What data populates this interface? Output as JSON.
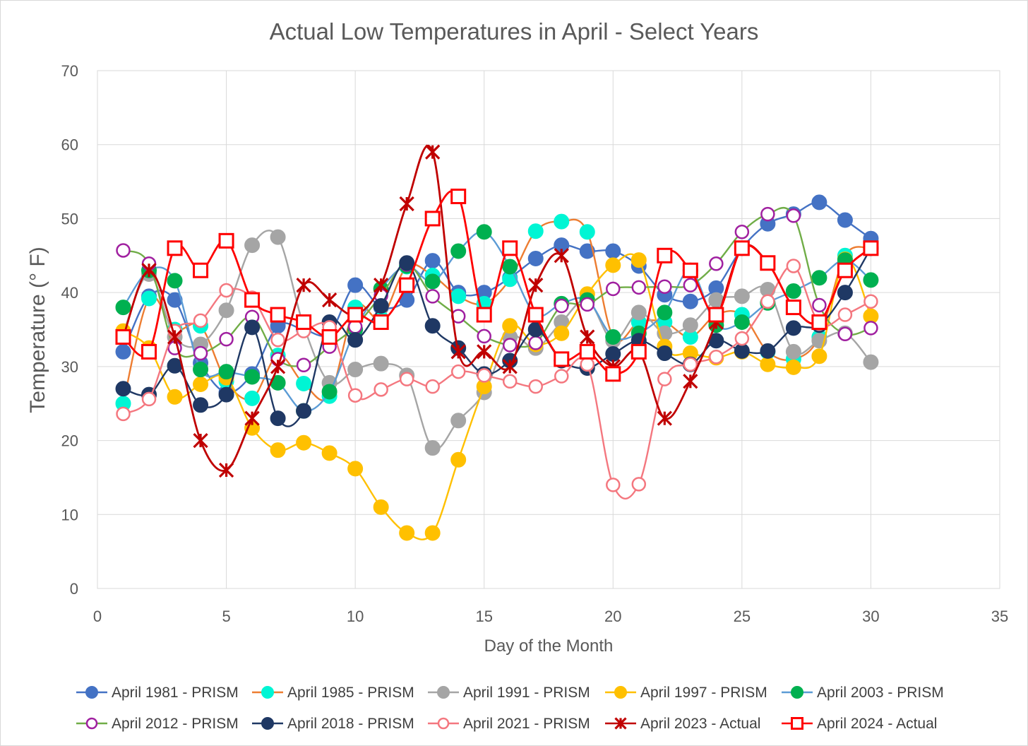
{
  "chart_data": {
    "type": "line",
    "title": "Actual Low Temperatures in April - Select Years",
    "xlabel": "Day of the Month",
    "ylabel": "Temperature (° F)",
    "xlim": [
      0,
      35
    ],
    "ylim": [
      0,
      70
    ],
    "x_ticks": [
      0,
      5,
      10,
      15,
      20,
      25,
      30,
      35
    ],
    "y_ticks": [
      0,
      10,
      20,
      30,
      40,
      50,
      60,
      70
    ],
    "grid": true,
    "legend_position": "bottom",
    "x": [
      1,
      2,
      3,
      4,
      5,
      6,
      7,
      8,
      9,
      10,
      11,
      12,
      13,
      14,
      15,
      16,
      17,
      18,
      19,
      20,
      21,
      22,
      23,
      24,
      25,
      26,
      27,
      28,
      29,
      30
    ],
    "series": [
      {
        "name": "April 1981 - PRISM",
        "line_color": "#4472c4",
        "marker": "circle",
        "marker_fill": "#4472c4",
        "marker_stroke": "#4472c4",
        "values": [
          32,
          39.5,
          39,
          30.5,
          26.5,
          29,
          35.5,
          35,
          34.5,
          41,
          38,
          39,
          44.3,
          40,
          40,
          42,
          44.6,
          46.4,
          45.6,
          45.6,
          43.6,
          39.7,
          38.8,
          40.6,
          46,
          49.3,
          50.6,
          52.2,
          49.8,
          47.3
        ]
      },
      {
        "name": "April 1985 - PRISM",
        "line_color": "#ed7d31",
        "marker": "circle",
        "marker_fill": "#00f5d4",
        "marker_stroke": "#00f5d4",
        "values": [
          25,
          39.2,
          35,
          35.5,
          28,
          25.7,
          31.5,
          27.7,
          26,
          38,
          36.5,
          43.5,
          42.3,
          39.5,
          38.5,
          41.8,
          48.3,
          49.6,
          48.2,
          34,
          36,
          36,
          34,
          37,
          37,
          32,
          31,
          34,
          45,
          46
        ]
      },
      {
        "name": "April 1991 - PRISM",
        "line_color": "#a5a5a5",
        "marker": "circle",
        "marker_fill": "#a5a5a5",
        "marker_stroke": "#a5a5a5",
        "values": [
          34.5,
          42.5,
          34,
          33,
          37.6,
          46.4,
          47.5,
          35.5,
          27.8,
          29.6,
          30.4,
          28.8,
          19,
          22.7,
          26.5,
          34,
          32.5,
          36,
          39,
          33.5,
          37.3,
          34.5,
          35.6,
          39,
          39.5,
          40.4,
          32,
          33.5,
          34.5,
          30.6
        ]
      },
      {
        "name": "April 1997 - PRISM",
        "line_color": "#ffc000",
        "marker": "circle",
        "marker_fill": "#ffc000",
        "marker_stroke": "#ffc000",
        "values": [
          34.8,
          32.5,
          25.9,
          27.6,
          28.5,
          21.7,
          18.7,
          19.7,
          18.3,
          16.2,
          11,
          7.5,
          7.5,
          17.4,
          27.3,
          35.5,
          33,
          34.5,
          39.8,
          43.7,
          44.4,
          32.7,
          31.8,
          31.2,
          32,
          30.3,
          29.9,
          31.4,
          44.5,
          36.8
        ]
      },
      {
        "name": "April 2003 - PRISM",
        "line_color": "#5b9bd5",
        "marker": "circle",
        "marker_fill": "#00b050",
        "marker_stroke": "#00b050",
        "values": [
          38,
          43,
          41.6,
          29.6,
          29.3,
          28.6,
          27.8,
          24,
          26.6,
          35,
          40.5,
          43.6,
          41.5,
          45.6,
          48.2,
          43.5,
          37,
          38.5,
          39,
          34,
          34.5,
          37.3,
          43,
          35.6,
          36,
          38.6,
          40.2,
          42,
          44.4,
          41.7
        ]
      },
      {
        "name": "April 2012 - PRISM",
        "line_color": "#70ad47",
        "marker": "circle-open",
        "marker_fill": "#ffffff",
        "marker_stroke": "#a020a0",
        "values": [
          45.7,
          43.9,
          32.5,
          31.8,
          33.7,
          36.7,
          31,
          30.2,
          32.7,
          35.4,
          39.6,
          43.8,
          39.5,
          36.8,
          34.1,
          32.9,
          33.2,
          38.2,
          38.4,
          40.5,
          40.7,
          40.8,
          41,
          43.9,
          48.2,
          50.6,
          50.4,
          38.3,
          34.4,
          35.2
        ]
      },
      {
        "name": "April 2018 - PRISM",
        "line_color": "#1f3864",
        "marker": "circle",
        "marker_fill": "#1f3864",
        "marker_stroke": "#1f3864",
        "values": [
          27,
          26.2,
          30.1,
          24.8,
          26.2,
          35.3,
          23,
          24,
          36,
          33.6,
          38.2,
          44,
          35.5,
          32.5,
          29,
          30.8,
          35,
          30.8,
          29.8,
          31.7,
          33.5,
          31.8,
          30.3,
          33.5,
          32.1,
          32.1,
          35.2,
          35.6,
          40,
          46
        ]
      },
      {
        "name": "April 2021 - PRISM",
        "line_color": "#f4777f",
        "marker": "circle-open",
        "marker_fill": "#ffffff",
        "marker_stroke": "#f4777f",
        "values": [
          23.6,
          25.6,
          34.8,
          36.2,
          40.3,
          39.3,
          33.6,
          34.8,
          35.3,
          26.1,
          26.9,
          28.3,
          27.3,
          29.3,
          28.8,
          28,
          27.3,
          28.7,
          30.3,
          14,
          14.1,
          28.3,
          30.3,
          31.3,
          33.8,
          38.8,
          43.6,
          35.8,
          37,
          38.8
        ]
      },
      {
        "name": "April 2023 - Actual",
        "line_color": "#c00000",
        "marker": "x-star",
        "marker_fill": "none",
        "marker_stroke": "#c00000",
        "values": [
          34,
          43,
          34,
          20,
          16,
          23,
          30,
          41,
          39,
          37,
          41,
          52,
          59,
          32,
          32,
          30,
          41,
          45,
          34,
          30,
          32,
          23,
          28,
          36,
          46,
          44,
          38,
          36,
          43,
          46
        ]
      },
      {
        "name": "April 2024 - Actual",
        "line_color": "#ff0000",
        "marker": "square-open",
        "marker_fill": "#ffffff",
        "marker_stroke": "#ff0000",
        "values": [
          34,
          32,
          46,
          43,
          47,
          39,
          37,
          36,
          34,
          37,
          36,
          41,
          50,
          53,
          37,
          46,
          37,
          31,
          32,
          29,
          32,
          45,
          43,
          37,
          46,
          44,
          38,
          36,
          43,
          46
        ]
      }
    ]
  }
}
